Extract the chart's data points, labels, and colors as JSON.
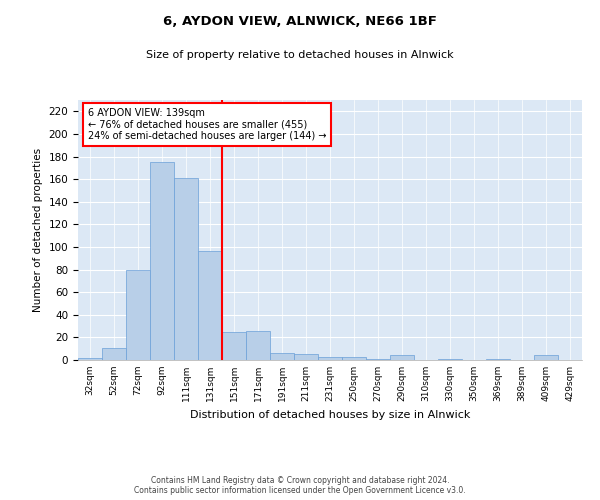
{
  "title": "6, AYDON VIEW, ALNWICK, NE66 1BF",
  "subtitle": "Size of property relative to detached houses in Alnwick",
  "xlabel": "Distribution of detached houses by size in Alnwick",
  "ylabel": "Number of detached properties",
  "footer1": "Contains HM Land Registry data © Crown copyright and database right 2024.",
  "footer2": "Contains public sector information licensed under the Open Government Licence v3.0.",
  "categories": [
    "32sqm",
    "52sqm",
    "72sqm",
    "92sqm",
    "111sqm",
    "131sqm",
    "151sqm",
    "171sqm",
    "191sqm",
    "211sqm",
    "231sqm",
    "250sqm",
    "270sqm",
    "290sqm",
    "310sqm",
    "330sqm",
    "350sqm",
    "369sqm",
    "389sqm",
    "409sqm",
    "429sqm"
  ],
  "values": [
    2,
    11,
    80,
    175,
    161,
    96,
    25,
    26,
    6,
    5,
    3,
    3,
    1,
    4,
    0,
    1,
    0,
    1,
    0,
    4,
    0
  ],
  "bar_color": "#b8cfe8",
  "bar_edgecolor": "#6a9fd8",
  "vline_x": 5.5,
  "vline_color": "red",
  "annotation_text": "6 AYDON VIEW: 139sqm\n← 76% of detached houses are smaller (455)\n24% of semi-detached houses are larger (144) →",
  "annotation_box_color": "white",
  "annotation_box_edgecolor": "red",
  "ylim": [
    0,
    230
  ],
  "yticks": [
    0,
    20,
    40,
    60,
    80,
    100,
    120,
    140,
    160,
    180,
    200,
    220
  ],
  "plot_background": "#dce8f5",
  "fig_background": "white"
}
